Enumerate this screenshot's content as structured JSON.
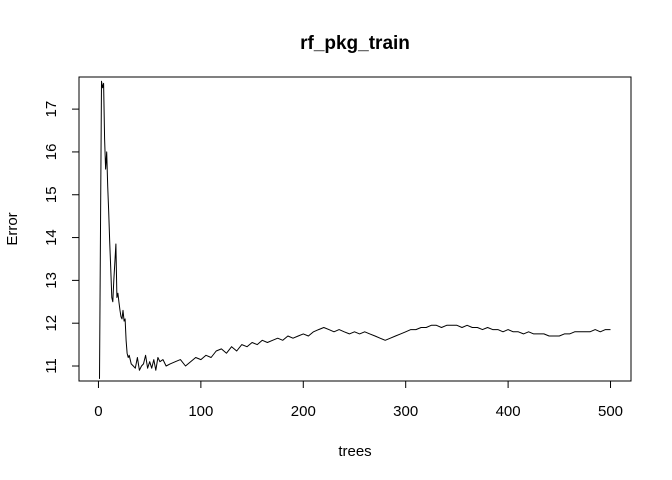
{
  "chart_data": {
    "type": "line",
    "title": "rf_pkg_train",
    "xlabel": "trees",
    "ylabel": "Error",
    "xlim": [
      1,
      500
    ],
    "ylim": [
      10.65,
      17.75
    ],
    "xticks": [
      0,
      100,
      200,
      300,
      400,
      500
    ],
    "yticks": [
      11,
      12,
      13,
      14,
      15,
      16,
      17
    ],
    "grid": false,
    "legend": "none",
    "line_color": "#000000",
    "series": [
      {
        "x": [
          1,
          2,
          3,
          4,
          5,
          6,
          7,
          8,
          9,
          10,
          11,
          12,
          13,
          14,
          15,
          16,
          17,
          18,
          19,
          20,
          21,
          22,
          23,
          24,
          25,
          26,
          27,
          28,
          29,
          30,
          32,
          34,
          36,
          38,
          40,
          42,
          44,
          46,
          48,
          50,
          52,
          54,
          56,
          58,
          60,
          63,
          66,
          70,
          75,
          80,
          85,
          90,
          95,
          100,
          105,
          110,
          115,
          120,
          125,
          130,
          135,
          140,
          145,
          150,
          155,
          160,
          165,
          170,
          175,
          180,
          185,
          190,
          195,
          200,
          205,
          210,
          215,
          220,
          225,
          230,
          235,
          240,
          245,
          250,
          255,
          260,
          265,
          270,
          275,
          280,
          285,
          290,
          295,
          300,
          305,
          310,
          315,
          320,
          325,
          330,
          335,
          340,
          345,
          350,
          355,
          360,
          365,
          370,
          375,
          380,
          385,
          390,
          395,
          400,
          405,
          410,
          415,
          420,
          425,
          430,
          435,
          440,
          445,
          450,
          455,
          460,
          465,
          470,
          475,
          480,
          485,
          490,
          495,
          500
        ],
        "values": [
          10.7,
          14.2,
          17.65,
          17.5,
          17.6,
          16.3,
          15.6,
          16.0,
          15.2,
          14.6,
          13.9,
          13.3,
          12.6,
          12.5,
          13.0,
          13.4,
          13.85,
          12.6,
          12.7,
          12.5,
          12.3,
          12.15,
          12.1,
          12.3,
          12.05,
          12.1,
          11.6,
          11.3,
          11.2,
          11.25,
          11.05,
          11.0,
          10.95,
          11.2,
          10.9,
          11.0,
          11.05,
          11.25,
          10.95,
          11.1,
          10.95,
          11.15,
          10.9,
          11.2,
          11.1,
          11.15,
          11.0,
          11.05,
          11.1,
          11.15,
          11.0,
          11.1,
          11.2,
          11.15,
          11.25,
          11.2,
          11.35,
          11.4,
          11.3,
          11.45,
          11.35,
          11.5,
          11.45,
          11.55,
          11.5,
          11.6,
          11.55,
          11.6,
          11.65,
          11.6,
          11.7,
          11.65,
          11.7,
          11.75,
          11.7,
          11.8,
          11.85,
          11.9,
          11.85,
          11.8,
          11.85,
          11.8,
          11.75,
          11.8,
          11.75,
          11.8,
          11.75,
          11.7,
          11.65,
          11.6,
          11.65,
          11.7,
          11.75,
          11.8,
          11.85,
          11.85,
          11.9,
          11.9,
          11.95,
          11.95,
          11.9,
          11.95,
          11.95,
          11.95,
          11.9,
          11.95,
          11.9,
          11.9,
          11.85,
          11.9,
          11.85,
          11.85,
          11.8,
          11.85,
          11.8,
          11.8,
          11.75,
          11.8,
          11.75,
          11.75,
          11.75,
          11.7,
          11.7,
          11.7,
          11.75,
          11.75,
          11.8,
          11.8,
          11.8,
          11.8,
          11.85,
          11.8,
          11.85,
          11.85
        ]
      }
    ]
  }
}
